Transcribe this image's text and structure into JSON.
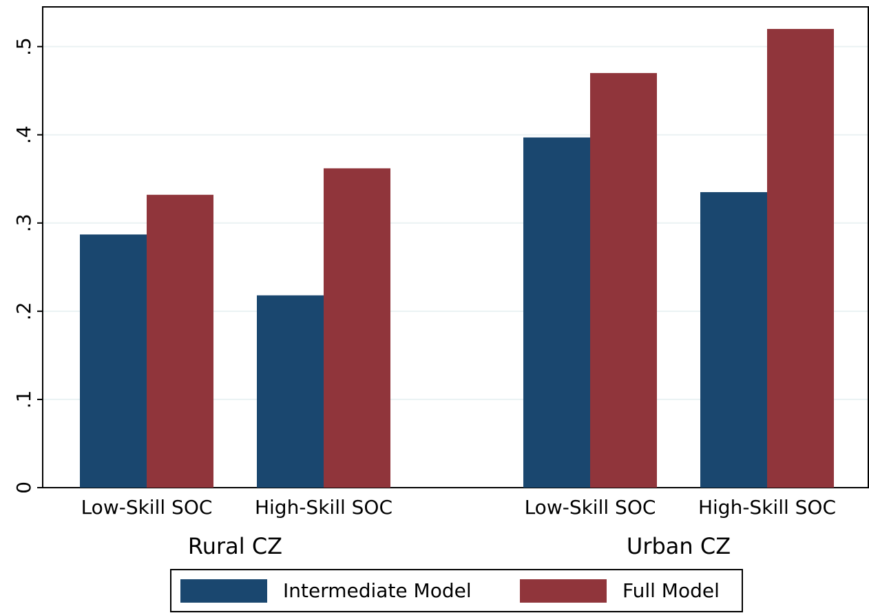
{
  "chart_data": {
    "type": "bar",
    "groups": [
      {
        "name": "Rural CZ",
        "categories": [
          "Low-Skill SOC",
          "High-Skill SOC"
        ]
      },
      {
        "name": "Urban CZ",
        "categories": [
          "Low-Skill SOC",
          "High-Skill SOC"
        ]
      }
    ],
    "series": [
      {
        "name": "Intermediate Model",
        "color": "#1a476f",
        "values": [
          0.287,
          0.218,
          0.397,
          0.335
        ]
      },
      {
        "name": "Full Model",
        "color": "#90353b",
        "values": [
          0.332,
          0.362,
          0.47,
          0.52
        ]
      }
    ],
    "ylim": [
      0,
      0.545
    ],
    "yticks": [
      0,
      {
        "value": 0.1,
        "label": ".1"
      },
      {
        "value": 0.2,
        "label": ".2"
      },
      {
        "value": 0.3,
        "label": ".3"
      },
      {
        "value": 0.4,
        "label": ".4"
      },
      {
        "value": 0.5,
        "label": ".5"
      }
    ],
    "grid": true,
    "legend": "bottom"
  }
}
